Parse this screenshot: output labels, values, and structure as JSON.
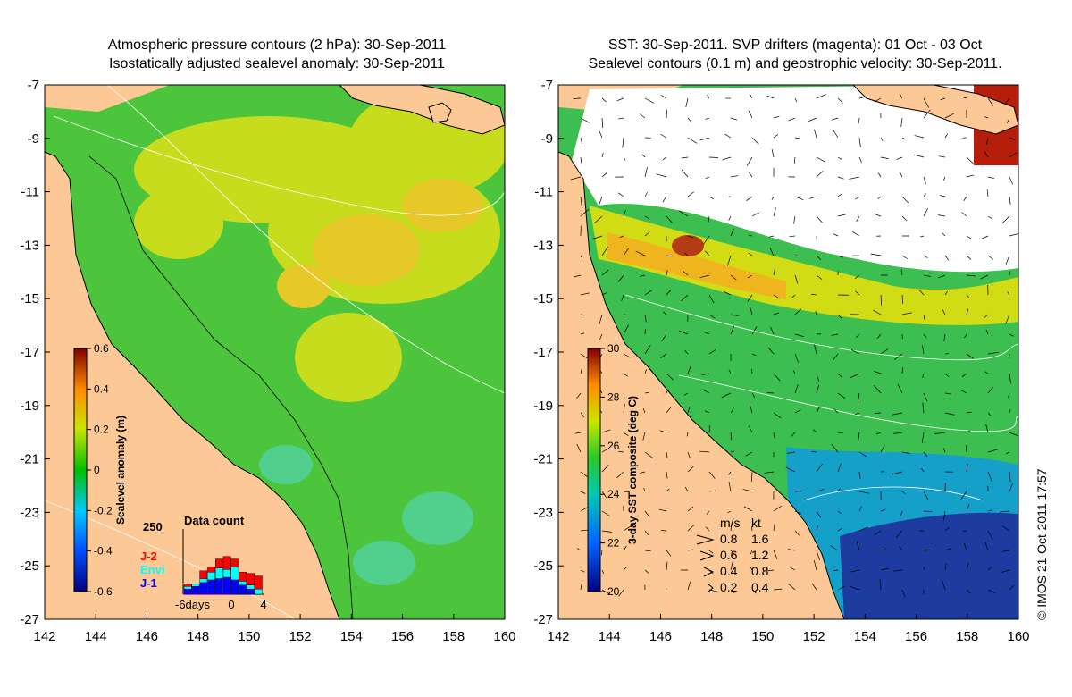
{
  "left_panel": {
    "title_line1": "Atmospheric pressure contours (2 hPa): 30-Sep-2011",
    "title_line2": "Isostatically adjusted sealevel anomaly: 30-Sep-2011",
    "colorbar": {
      "label": "Sealevel anomaly (m)",
      "ticks": [
        "0.6",
        "0.4",
        "0.2",
        "0",
        "-0.2",
        "-0.4",
        "-0.6"
      ],
      "range": [
        -0.6,
        0.6
      ]
    },
    "data_count": {
      "title": "Data count",
      "ymax_label": "250",
      "x_labels": [
        "-6days",
        "0",
        "4"
      ],
      "legend": [
        {
          "name": "J-2",
          "color": "#ff0000"
        },
        {
          "name": "Envi",
          "color": "#00ffff"
        },
        {
          "name": "J-1",
          "color": "#0000ff"
        }
      ],
      "bars": [
        {
          "j1": 20,
          "envi": 10,
          "j2": 10
        },
        {
          "j1": 30,
          "envi": 10,
          "j2": 0
        },
        {
          "j1": 45,
          "envi": 15,
          "j2": 30
        },
        {
          "j1": 55,
          "envi": 30,
          "j2": 20
        },
        {
          "j1": 60,
          "envi": 40,
          "j2": 35
        },
        {
          "j1": 65,
          "envi": 30,
          "j2": 50
        },
        {
          "j1": 55,
          "envi": 50,
          "j2": 30
        },
        {
          "j1": 35,
          "envi": 15,
          "j2": 35
        },
        {
          "j1": 20,
          "envi": 15,
          "j2": 45
        },
        {
          "j1": 0,
          "envi": 20,
          "j2": 50
        }
      ]
    }
  },
  "right_panel": {
    "title_line1": "SST: 30-Sep-2011. SVP drifters (magenta): 01 Oct - 03 Oct",
    "title_line2": "Sealevel contours (0.1 m) and geostrophic velocity: 30-Sep-2011.",
    "colorbar": {
      "label": "3-day SST composite (deg C)",
      "ticks": [
        "30",
        "28",
        "26",
        "24",
        "22",
        "20"
      ],
      "range": [
        20,
        30
      ]
    },
    "velocity_legend": {
      "header_ms": "m/s",
      "header_kt": "kt",
      "rows": [
        {
          "ms": "0.8",
          "kt": "1.6"
        },
        {
          "ms": "0.6",
          "kt": "1.2"
        },
        {
          "ms": "0.4",
          "kt": "0.8"
        },
        {
          "ms": "0.2",
          "kt": "0.4"
        }
      ]
    }
  },
  "axes": {
    "y_ticks": [
      "-7",
      "-9",
      "-11",
      "-13",
      "-15",
      "-17",
      "-19",
      "-21",
      "-23",
      "-25",
      "-27"
    ],
    "x_ticks": [
      "142",
      "144",
      "146",
      "148",
      "150",
      "152",
      "154",
      "156",
      "158",
      "160"
    ],
    "lat_range": [
      -27,
      -7
    ],
    "lon_range": [
      142,
      160
    ]
  },
  "stamp": "© IMOS 21-Oct-2011 17:57",
  "colors": {
    "land": "#fcc896",
    "sea_green": "#4cc43c",
    "sea_yellow": "#e6dc1e",
    "cloud": "#ffffff",
    "deep_blue": "#1e3ca0"
  }
}
